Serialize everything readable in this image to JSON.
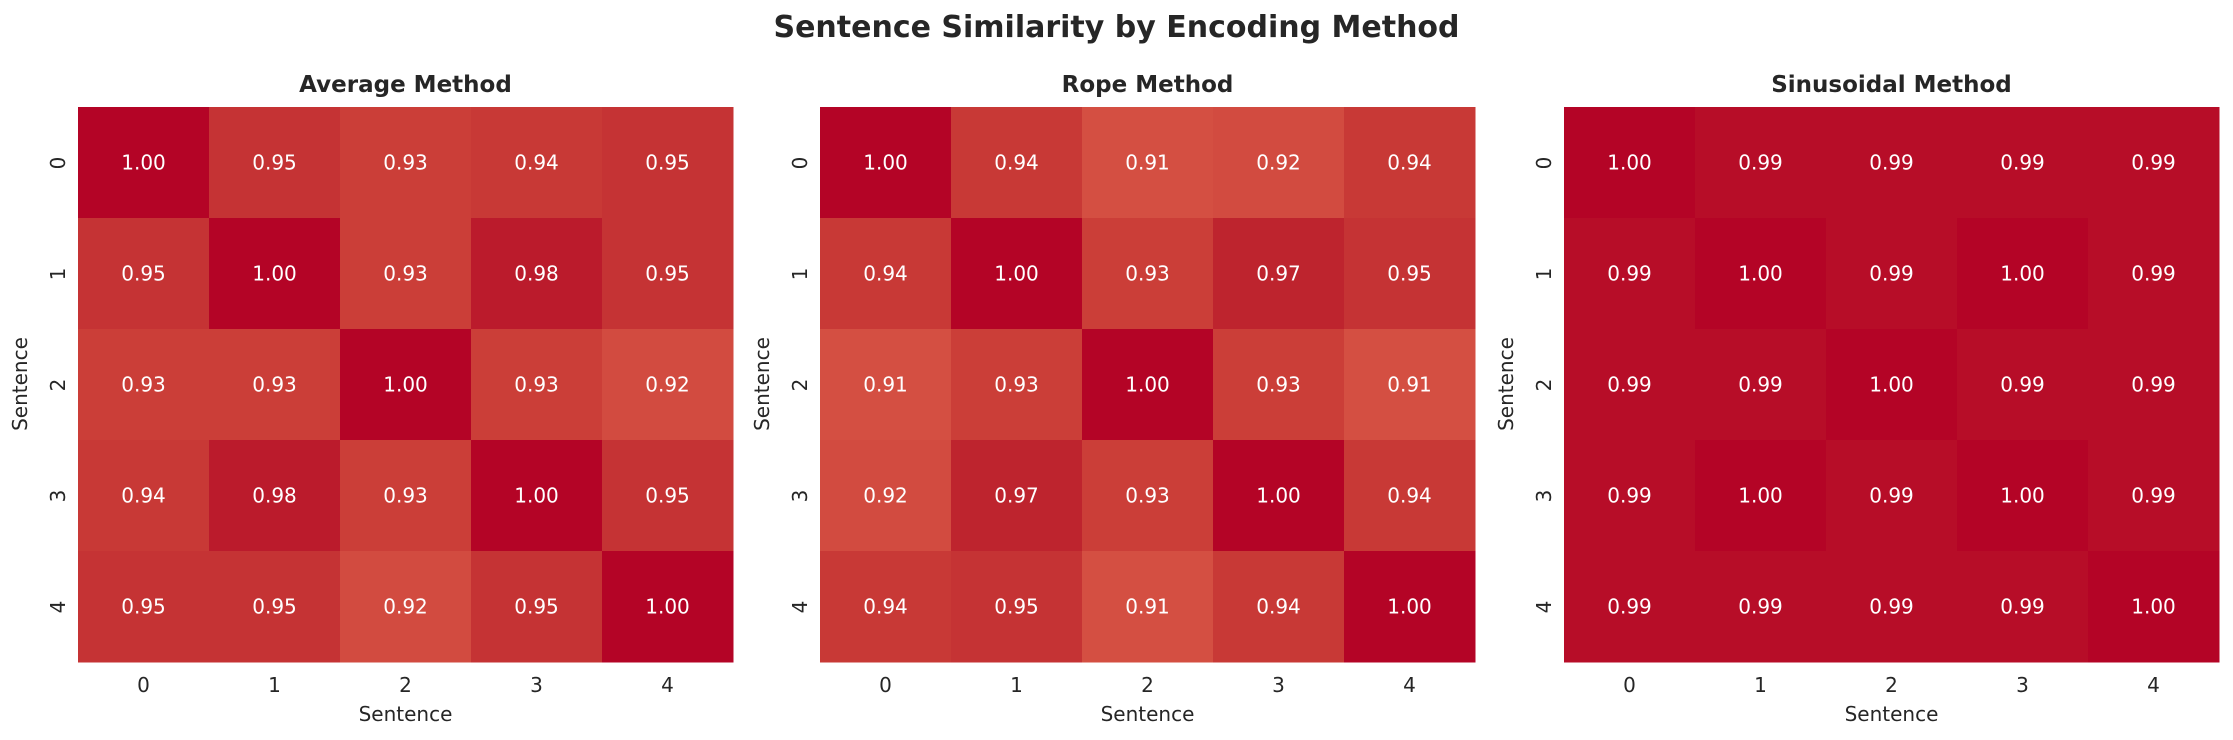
{
  "title": "Sentence Similarity by Encoding Method",
  "chart_data": [
    {
      "type": "heatmap",
      "title": "Average Method",
      "xlabel": "Sentence",
      "ylabel": "Sentence",
      "xticks": [
        "0",
        "1",
        "2",
        "3",
        "4"
      ],
      "yticks": [
        "0",
        "1",
        "2",
        "3",
        "4"
      ],
      "colormap": "coolwarm",
      "annotations": true,
      "values": [
        [
          1.0,
          0.95,
          0.93,
          0.94,
          0.95
        ],
        [
          0.95,
          1.0,
          0.93,
          0.98,
          0.95
        ],
        [
          0.93,
          0.93,
          1.0,
          0.93,
          0.92
        ],
        [
          0.94,
          0.98,
          0.93,
          1.0,
          0.95
        ],
        [
          0.95,
          0.95,
          0.92,
          0.95,
          1.0
        ]
      ]
    },
    {
      "type": "heatmap",
      "title": "Rope Method",
      "xlabel": "Sentence",
      "ylabel": "Sentence",
      "xticks": [
        "0",
        "1",
        "2",
        "3",
        "4"
      ],
      "yticks": [
        "0",
        "1",
        "2",
        "3",
        "4"
      ],
      "colormap": "coolwarm",
      "annotations": true,
      "values": [
        [
          1.0,
          0.94,
          0.91,
          0.92,
          0.94
        ],
        [
          0.94,
          1.0,
          0.93,
          0.97,
          0.95
        ],
        [
          0.91,
          0.93,
          1.0,
          0.93,
          0.91
        ],
        [
          0.92,
          0.97,
          0.93,
          1.0,
          0.94
        ],
        [
          0.94,
          0.95,
          0.91,
          0.94,
          1.0
        ]
      ]
    },
    {
      "type": "heatmap",
      "title": "Sinusoidal Method",
      "xlabel": "Sentence",
      "ylabel": "Sentence",
      "xticks": [
        "0",
        "1",
        "2",
        "3",
        "4"
      ],
      "yticks": [
        "0",
        "1",
        "2",
        "3",
        "4"
      ],
      "colormap": "coolwarm",
      "annotations": true,
      "values": [
        [
          1.0,
          0.99,
          0.99,
          0.99,
          0.99
        ],
        [
          0.99,
          1.0,
          0.99,
          1.0,
          0.99
        ],
        [
          0.99,
          0.99,
          1.0,
          0.99,
          0.99
        ],
        [
          0.99,
          1.0,
          0.99,
          1.0,
          0.99
        ],
        [
          0.99,
          0.99,
          0.99,
          0.99,
          1.0
        ]
      ]
    }
  ]
}
